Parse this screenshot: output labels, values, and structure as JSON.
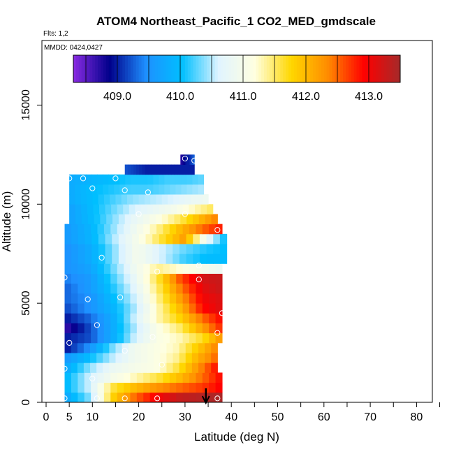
{
  "chart_data": {
    "type": "heatmap",
    "title": "ATOM4 Northeast_Pacific_1 CO2_MED_gmdscale",
    "subtitle_flights": "Flts: 1,2",
    "subtitle_dates": "MMDD: 0424,0427",
    "xlabel": "Latitude (deg N)",
    "ylabel": "Altitude (m)",
    "xlim": [
      0,
      85
    ],
    "ylim": [
      0,
      17500
    ],
    "x_ticks": [
      0,
      5,
      10,
      20,
      30,
      40,
      50,
      60,
      70,
      80
    ],
    "y_ticks": [
      0,
      5000,
      10000,
      15000
    ],
    "colorbar": {
      "range": [
        408.3,
        413.5
      ],
      "tick_values": [
        409.0,
        410.0,
        411.0,
        412.0,
        413.0
      ],
      "tick_labels": [
        "409.0",
        "410.0",
        "411.0",
        "412.0",
        "413.0"
      ],
      "colors": [
        "#8a2be2",
        "#00008b",
        "#1e90ff",
        "#00bfff",
        "#e0f4ff",
        "#ffffe0",
        "#ffd700",
        "#ff8c00",
        "#ff0000",
        "#a52a2a"
      ]
    },
    "altitude_bands": [
      {
        "alt": [
          0,
          500
        ],
        "lat": [
          4,
          38
        ],
        "values": [
          409.8,
          410.4,
          411.8,
          412.5,
          413.0,
          413.3,
          413.4,
          413.5
        ]
      },
      {
        "alt": [
          500,
          1000
        ],
        "lat": [
          4,
          38
        ],
        "values": [
          410.0,
          410.6,
          411.6,
          412.0,
          412.3,
          412.5,
          412.7,
          413.0
        ]
      },
      {
        "alt": [
          1000,
          1500
        ],
        "lat": [
          4,
          38
        ],
        "values": [
          410.0,
          410.6,
          411.0,
          411.3,
          411.6,
          412.0,
          412.5,
          413.0
        ]
      },
      {
        "alt": [
          1500,
          2000
        ],
        "lat": [
          4,
          37
        ],
        "values": [
          409.8,
          410.4,
          410.8,
          411.0,
          411.1,
          411.6,
          412.3,
          413.0
        ]
      },
      {
        "alt": [
          2000,
          2500
        ],
        "lat": [
          4,
          37
        ],
        "values": [
          409.6,
          410.0,
          410.5,
          410.9,
          411.1,
          411.4,
          412.1,
          412.6
        ]
      },
      {
        "alt": [
          2500,
          3000
        ],
        "lat": [
          4,
          37
        ],
        "values": [
          409.0,
          409.5,
          410.3,
          410.9,
          411.1,
          411.3,
          411.9,
          412.5
        ]
      },
      {
        "alt": [
          3000,
          3500
        ],
        "lat": [
          4,
          38
        ],
        "values": [
          409.0,
          409.2,
          409.8,
          410.6,
          411.1,
          411.3,
          411.7,
          412.4
        ]
      },
      {
        "alt": [
          3500,
          4000
        ],
        "lat": [
          4,
          38
        ],
        "values": [
          408.7,
          409.2,
          409.8,
          410.5,
          411.1,
          411.5,
          412.2,
          412.9
        ]
      },
      {
        "alt": [
          4000,
          4500
        ],
        "lat": [
          4,
          38
        ],
        "values": [
          409.0,
          409.3,
          409.8,
          410.6,
          411.3,
          411.8,
          412.5,
          413.0
        ]
      },
      {
        "alt": [
          4500,
          5000
        ],
        "lat": [
          4,
          38
        ],
        "values": [
          409.2,
          409.5,
          409.9,
          410.5,
          411.3,
          412.0,
          412.9,
          413.2
        ]
      },
      {
        "alt": [
          5000,
          5500
        ],
        "lat": [
          4,
          38
        ],
        "values": [
          409.3,
          409.5,
          410.0,
          410.6,
          411.4,
          412.2,
          413.0,
          413.2
        ]
      },
      {
        "alt": [
          5500,
          6000
        ],
        "lat": [
          4,
          38
        ],
        "values": [
          409.3,
          409.6,
          410.1,
          410.7,
          411.5,
          412.4,
          413.1,
          413.3
        ]
      },
      {
        "alt": [
          6000,
          6500
        ],
        "lat": [
          4,
          38
        ],
        "values": [
          409.4,
          409.6,
          410.2,
          410.8,
          411.6,
          412.6,
          413.2,
          413.3
        ]
      },
      {
        "alt": [
          6500,
          7000
        ],
        "lat": [
          4,
          38
        ],
        "values": [
          409.5,
          409.7,
          410.3,
          410.9,
          411.4,
          411.2,
          411.0,
          410.8
        ]
      },
      {
        "alt": [
          7000,
          7500
        ],
        "lat": [
          4,
          39
        ],
        "values": [
          409.5,
          409.8,
          410.4,
          411.0,
          410.6,
          410.2,
          410.0,
          410.0
        ]
      },
      {
        "alt": [
          7500,
          8000
        ],
        "lat": [
          4,
          39
        ],
        "values": [
          409.5,
          409.8,
          410.4,
          411.0,
          410.6,
          410.3,
          410.1,
          410.0
        ]
      },
      {
        "alt": [
          8000,
          8500
        ],
        "lat": [
          4,
          39
        ],
        "values": [
          409.6,
          409.9,
          410.5,
          411.0,
          411.6,
          412.2,
          410.8,
          409.8
        ]
      },
      {
        "alt": [
          8500,
          9000
        ],
        "lat": [
          4,
          38
        ],
        "values": [
          409.6,
          409.9,
          410.4,
          410.9,
          411.4,
          412.0,
          412.5,
          412.9
        ]
      },
      {
        "alt": [
          9000,
          9500
        ],
        "lat": [
          5,
          37
        ],
        "values": [
          409.7,
          410.0,
          410.4,
          410.8,
          411.1,
          411.5,
          412.0,
          412.5
        ]
      },
      {
        "alt": [
          9500,
          10000
        ],
        "lat": [
          5,
          36
        ],
        "values": [
          409.7,
          410.0,
          410.3,
          410.6,
          410.8,
          411.0,
          411.3,
          411.6
        ]
      },
      {
        "alt": [
          10000,
          10500
        ],
        "lat": [
          5,
          35
        ],
        "values": [
          409.8,
          410.0,
          410.2,
          410.4,
          410.5,
          410.6,
          410.8,
          410.9
        ]
      },
      {
        "alt": [
          10500,
          11000
        ],
        "lat": [
          5,
          34
        ],
        "values": [
          409.8,
          410.0,
          410.1,
          410.2,
          410.2,
          410.3,
          410.4,
          410.5
        ]
      },
      {
        "alt": [
          11000,
          11500
        ],
        "lat": [
          5,
          34
        ],
        "values": [
          409.8,
          409.9,
          410.0,
          410.1,
          410.1,
          410.2,
          410.2,
          410.3
        ]
      },
      {
        "alt": [
          11500,
          12000
        ],
        "lat": [
          17,
          32
        ],
        "values": [
          409.2,
          409.1,
          409.0,
          409.0,
          409.0,
          409.0,
          409.0,
          409.0
        ]
      },
      {
        "alt": [
          12000,
          12500
        ],
        "lat": [
          29,
          32
        ],
        "values": [
          408.7,
          408.8,
          408.9,
          409.0,
          409.0,
          409.1,
          409.2,
          409.3
        ]
      }
    ],
    "flight_points": [
      [
        5,
        11300
      ],
      [
        8,
        11300
      ],
      [
        15,
        11300
      ],
      [
        10,
        10800
      ],
      [
        17,
        10700
      ],
      [
        22,
        10600
      ],
      [
        20,
        9500
      ],
      [
        30,
        9500
      ],
      [
        37,
        8700
      ],
      [
        12,
        7300
      ],
      [
        24,
        6600
      ],
      [
        33,
        6900
      ],
      [
        4,
        6300
      ],
      [
        33,
        6200
      ],
      [
        9,
        5200
      ],
      [
        16,
        5300
      ],
      [
        38,
        4500
      ],
      [
        11,
        3900
      ],
      [
        23,
        3300
      ],
      [
        37,
        3500
      ],
      [
        5,
        3000
      ],
      [
        17,
        2600
      ],
      [
        25,
        1900
      ],
      [
        4,
        1700
      ],
      [
        10,
        1200
      ],
      [
        11,
        200
      ],
      [
        17,
        200
      ],
      [
        24,
        200
      ],
      [
        37,
        200
      ],
      [
        4,
        200
      ],
      [
        30,
        12300
      ],
      [
        32,
        12200
      ]
    ],
    "arrow_marker": {
      "lat": 34.5,
      "direction": "down"
    }
  }
}
